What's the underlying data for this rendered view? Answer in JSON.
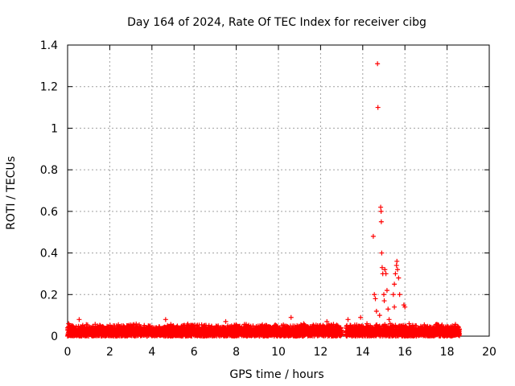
{
  "chart_data": {
    "type": "scatter",
    "title": "Day 164 of 2024, Rate Of TEC Index for receiver cibg",
    "xlabel": "GPS time / hours",
    "ylabel": "ROTI / TECUs",
    "xlim": [
      0,
      20
    ],
    "ylim": [
      0,
      1.4
    ],
    "xticks": [
      0,
      2,
      4,
      6,
      8,
      10,
      12,
      14,
      16,
      18,
      20
    ],
    "yticks": [
      0,
      0.2,
      0.4,
      0.6,
      0.8,
      1,
      1.2,
      1.4
    ],
    "xtick_labels": [
      "0",
      "2",
      "4",
      "6",
      "8",
      "10",
      "12",
      "14",
      "16",
      "18",
      "20"
    ],
    "ytick_labels": [
      "0",
      "0.2",
      "0.4",
      "0.6",
      "0.8",
      "1",
      "1.2",
      "1.4"
    ],
    "grid": true,
    "marker": "+",
    "color": "#ff0000",
    "data_gap_hours": [
      13.0,
      13.2
    ],
    "data_end_hour": 18.6,
    "baseline_range": [
      0.0,
      0.06
    ],
    "series": [
      {
        "name": "ROTI",
        "points": [
          [
            0.05,
            0.06
          ],
          [
            0.55,
            0.08
          ],
          [
            4.65,
            0.08
          ],
          [
            7.5,
            0.07
          ],
          [
            10.6,
            0.09
          ],
          [
            11.2,
            0.06
          ],
          [
            12.3,
            0.07
          ],
          [
            13.3,
            0.08
          ],
          [
            13.9,
            0.09
          ],
          [
            14.2,
            0.06
          ],
          [
            14.5,
            0.48
          ],
          [
            14.55,
            0.2
          ],
          [
            14.6,
            0.18
          ],
          [
            14.65,
            0.12
          ],
          [
            14.7,
            1.31
          ],
          [
            14.72,
            1.1
          ],
          [
            14.8,
            0.1
          ],
          [
            14.85,
            0.62
          ],
          [
            14.87,
            0.6
          ],
          [
            14.88,
            0.55
          ],
          [
            14.9,
            0.4
          ],
          [
            14.92,
            0.33
          ],
          [
            14.95,
            0.3
          ],
          [
            15.0,
            0.2
          ],
          [
            15.02,
            0.17
          ],
          [
            15.05,
            0.32
          ],
          [
            15.1,
            0.3
          ],
          [
            15.15,
            0.22
          ],
          [
            15.2,
            0.13
          ],
          [
            15.25,
            0.08
          ],
          [
            15.3,
            0.06
          ],
          [
            15.45,
            0.2
          ],
          [
            15.5,
            0.25
          ],
          [
            15.55,
            0.3
          ],
          [
            15.6,
            0.34
          ],
          [
            15.62,
            0.36
          ],
          [
            15.65,
            0.32
          ],
          [
            15.7,
            0.28
          ],
          [
            15.75,
            0.2
          ],
          [
            15.5,
            0.14
          ],
          [
            15.95,
            0.15
          ],
          [
            16.0,
            0.14
          ],
          [
            16.2,
            0.06
          ],
          [
            18.4,
            0.05
          ]
        ]
      }
    ]
  }
}
